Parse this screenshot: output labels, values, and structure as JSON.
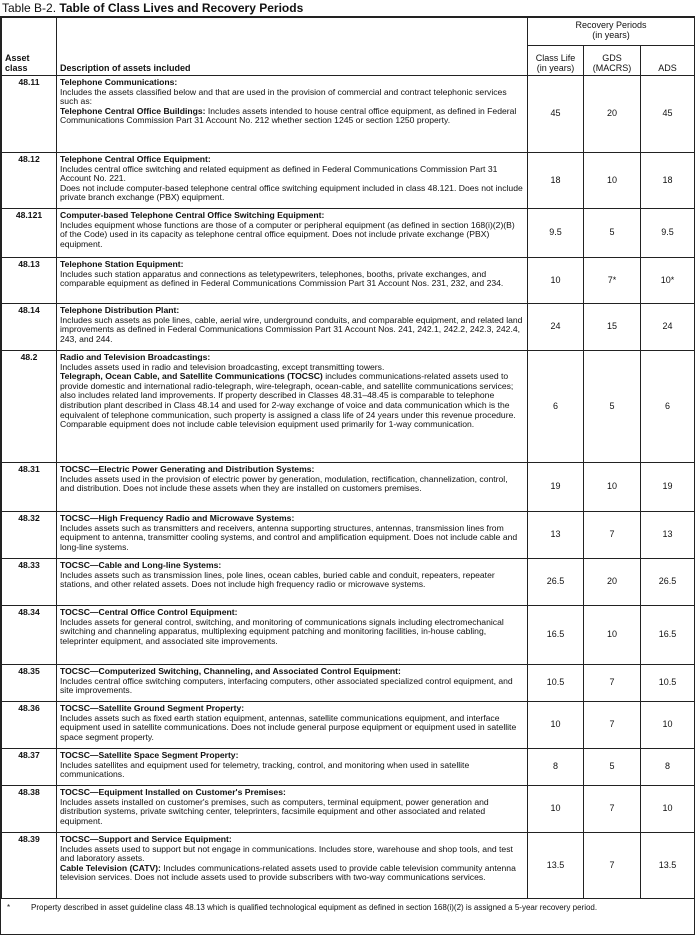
{
  "header": {
    "label": "Table B-2.",
    "title": "Table of Class Lives and Recovery Periods"
  },
  "table": {
    "columns": {
      "asset_class": "Asset class",
      "description": "Description of assets included",
      "group": "Recovery Periods",
      "group_sub": "(in years)",
      "class_life": "Class Life (in years)",
      "gds": "GDS (MACRS)",
      "ads": "ADS"
    },
    "rows": [
      {
        "asset_class": "48.11",
        "parts": [
          {
            "heading": "Telephone Communications:",
            "text": "Includes the assets classified below and that are used in the provision of commercial and contract telephonic services such as:"
          },
          {
            "heading": "Telephone Central Office Buildings:",
            "text": "Includes assets intended to house central office equipment, as defined in Federal Communications Commission Part 31 Account No. 212 whether section 1245 or section 1250 property."
          }
        ],
        "class_life": "45",
        "gds": "20",
        "ads": "45"
      },
      {
        "asset_class": "48.12",
        "parts": [
          {
            "heading": "Telephone Central Office Equipment:",
            "text": "Includes central office switching and related equipment as defined in Federal Communications Commission Part 31 Account No. 221."
          },
          {
            "text": "Does not include computer-based telephone central office switching equipment included in class 48.121. Does not include private branch exchange (PBX) equipment."
          }
        ],
        "class_life": "18",
        "gds": "10",
        "ads": "18"
      },
      {
        "asset_class": "48.121",
        "parts": [
          {
            "heading": "Computer-based Telephone Central Office Switching Equipment:",
            "text": "Includes equipment whose functions are those of a computer or peripheral equipment (as defined in section 168(i)(2)(B) of the Code) used in its capacity as telephone central office equipment. Does not include private exchange (PBX) equipment."
          }
        ],
        "class_life": "9.5",
        "gds": "5",
        "ads": "9.5"
      },
      {
        "asset_class": "48.13",
        "parts": [
          {
            "heading": "Telephone Station Equipment:",
            "text": "Includes such station apparatus and connections as teletypewriters, telephones, booths, private exchanges, and comparable equipment as defined in Federal Communications Commission Part 31 Account Nos. 231, 232, and 234."
          }
        ],
        "class_life": "10",
        "gds": "7*",
        "ads": "10*"
      },
      {
        "asset_class": "48.14",
        "parts": [
          {
            "heading": "Telephone Distribution Plant:",
            "text": "Includes such assets as pole lines, cable, aerial wire, underground conduits, and comparable equipment, and related land improvements as defined in Federal Communications Commission Part 31 Account Nos. 241, 242.1, 242.2, 242.3, 242.4, 243, and 244."
          }
        ],
        "class_life": "24",
        "gds": "15",
        "ads": "24"
      },
      {
        "asset_class": "48.2",
        "parts": [
          {
            "heading": "Radio and Television Broadcastings:",
            "text": "Includes assets used in radio and television broadcasting, except transmitting towers."
          },
          {
            "heading": "Telegraph, Ocean Cable, and Satellite Communications (TOCSC)",
            "text": "includes communications-related assets used to provide domestic and international radio-telegraph, wire-telegraph, ocean-cable, and satellite communications services; also includes related land improvements. If property described in Classes 48.31–48.45 is comparable to telephone distribution plant described in Class 48.14 and used for 2-way exchange of voice and data communication which is the equivalent of telephone communication, such property is assigned a class life of 24 years under this revenue procedure. Comparable equipment does not include cable television equipment used primarily for 1-way communication."
          }
        ],
        "class_life": "6",
        "gds": "5",
        "ads": "6"
      },
      {
        "asset_class": "48.31",
        "parts": [
          {
            "heading": "TOCSC—Electric Power Generating and Distribution Systems:",
            "text": "Includes assets used in the provision of electric power by generation, modulation, rectification, channelization, control, and distribution. Does not include these assets when they are installed on customers premises."
          }
        ],
        "class_life": "19",
        "gds": "10",
        "ads": "19"
      },
      {
        "asset_class": "48.32",
        "parts": [
          {
            "heading": "TOCSC—High Frequency Radio and Microwave Systems:",
            "text": "Includes assets such as transmitters and receivers, antenna supporting structures, antennas, transmission lines from equipment to antenna, transmitter cooling systems, and control and amplification equipment. Does not include cable and long-line systems."
          }
        ],
        "class_life": "13",
        "gds": "7",
        "ads": "13"
      },
      {
        "asset_class": "48.33",
        "parts": [
          {
            "heading": "TOCSC—Cable and Long-line Systems:",
            "text": "Includes assets such as transmission lines, pole lines, ocean cables, buried cable and conduit, repeaters, repeater stations, and other related assets. Does not include high frequency radio or microwave systems."
          }
        ],
        "class_life": "26.5",
        "gds": "20",
        "ads": "26.5"
      },
      {
        "asset_class": "48.34",
        "parts": [
          {
            "heading": "TOCSC—Central Office Control Equipment:",
            "text": "Includes assets for general control, switching, and monitoring of communications signals including electromechanical switching and channeling apparatus, multiplexing equipment patching and monitoring facilities, in-house cabling, teleprinter equipment, and associated site improvements."
          }
        ],
        "class_life": "16.5",
        "gds": "10",
        "ads": "16.5"
      },
      {
        "asset_class": "48.35",
        "parts": [
          {
            "heading": "TOCSC—Computerized Switching, Channeling, and Associated Control Equipment:",
            "text": "Includes central office switching computers, interfacing computers, other associated specialized control equipment, and site improvements."
          }
        ],
        "class_life": "10.5",
        "gds": "7",
        "ads": "10.5"
      },
      {
        "asset_class": "48.36",
        "parts": [
          {
            "heading": "TOCSC—Satellite Ground Segment Property:",
            "text": "Includes assets such as fixed earth station equipment, antennas, satellite communications equipment, and interface equipment used in satellite communications. Does not include general purpose equipment or equipment used in satellite space segment property."
          }
        ],
        "class_life": "10",
        "gds": "7",
        "ads": "10"
      },
      {
        "asset_class": "48.37",
        "parts": [
          {
            "heading": "TOCSC—Satellite Space Segment Property:",
            "text": "Includes satellites and equipment used for telemetry, tracking, control, and monitoring when used in satellite communications."
          }
        ],
        "class_life": "8",
        "gds": "5",
        "ads": "8"
      },
      {
        "asset_class": "48.38",
        "parts": [
          {
            "heading": "TOCSC—Equipment Installed on Customer's Premises:",
            "text": "Includes assets installed on customer's premises, such as computers, terminal equipment, power generation and distribution systems, private switching center, teleprinters, facsimile equipment and other associated and related equipment."
          }
        ],
        "class_life": "10",
        "gds": "7",
        "ads": "10"
      },
      {
        "asset_class": "48.39",
        "parts": [
          {
            "heading": "TOCSC—Support and Service Equipment:",
            "text": "Includes assets used to support but not engage in communications. Includes store, warehouse and shop tools, and test and laboratory assets."
          },
          {
            "heading": "Cable Television (CATV):",
            "text": "Includes communications-related assets used to provide cable television community antenna television services. Does not include assets used to provide subscribers with two-way communications services."
          }
        ],
        "class_life": "13.5",
        "gds": "7",
        "ads": "13.5"
      }
    ]
  },
  "footnote": {
    "mark": "*",
    "text": "Property described in asset guideline class 48.13 which is qualified technological equipment as defined in section 168(i)(2) is assigned a 5-year recovery period."
  }
}
